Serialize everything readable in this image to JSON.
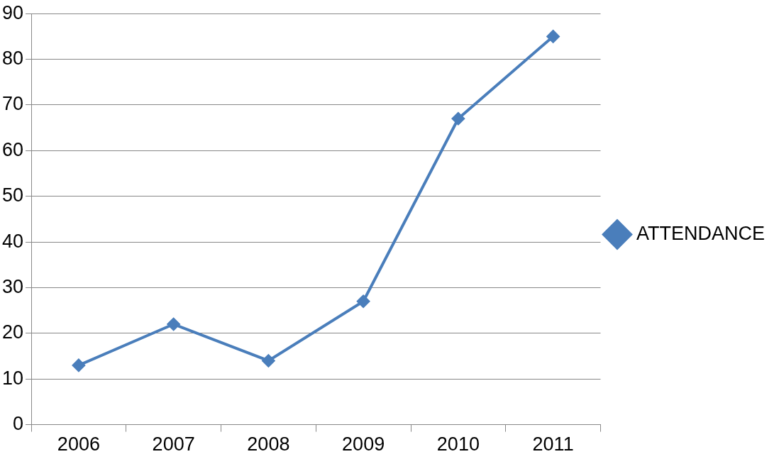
{
  "chart_data": {
    "type": "line",
    "categories": [
      "2006",
      "2007",
      "2008",
      "2009",
      "2010",
      "2011"
    ],
    "series": [
      {
        "name": "ATTENDANCE",
        "color": "#4a7ebb",
        "values": [
          13,
          22,
          14,
          27,
          67,
          85
        ]
      }
    ],
    "ylim": [
      0,
      90
    ],
    "yticks": [
      0,
      10,
      20,
      30,
      40,
      50,
      60,
      70,
      80,
      90
    ],
    "grid": "y",
    "legend": "right",
    "marker": "diamond",
    "line_style": "solid"
  }
}
